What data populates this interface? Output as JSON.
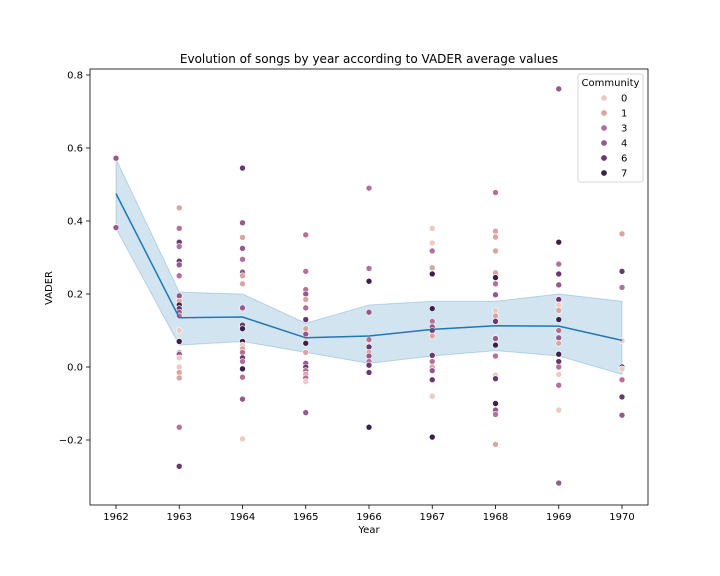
{
  "chart_data": {
    "type": "scatter",
    "title": "Evolution of songs by year according to VADER average values",
    "xlabel": "Year",
    "ylabel": "VADER",
    "categories": [
      "1962",
      "1963",
      "1964",
      "1965",
      "1966",
      "1967",
      "1968",
      "1969",
      "1970"
    ],
    "ylim": [
      -0.38,
      0.82
    ],
    "y_ticks": [
      -0.2,
      0.0,
      0.2,
      0.4,
      0.6,
      0.8
    ],
    "y_tick_labels": [
      "−0.2",
      "0.0",
      "0.2",
      "0.4",
      "0.6",
      "0.8"
    ],
    "grid": false,
    "legend": {
      "title": "Community",
      "position": "top-right",
      "entries": [
        {
          "label": "0",
          "color": "#ebcbc3"
        },
        {
          "label": "1",
          "color": "#d8a5a2"
        },
        {
          "label": "3",
          "color": "#b3719a"
        },
        {
          "label": "4",
          "color": "#955a8c"
        },
        {
          "label": "6",
          "color": "#673a6e"
        },
        {
          "label": "7",
          "color": "#3b2149"
        }
      ]
    },
    "mean_line": {
      "color": "#1f77b4",
      "band_color": "#1f77b4",
      "values": [
        0.475,
        0.135,
        0.137,
        0.08,
        0.085,
        0.103,
        0.113,
        0.112,
        0.073
      ],
      "ci_lower": [
        0.38,
        0.06,
        0.07,
        0.04,
        0.01,
        0.03,
        0.045,
        0.03,
        -0.02
      ],
      "ci_upper": [
        0.57,
        0.205,
        0.2,
        0.12,
        0.17,
        0.18,
        0.18,
        0.2,
        0.18
      ]
    },
    "points": [
      {
        "x": "1962",
        "y": 0.572,
        "c": "4"
      },
      {
        "x": "1962",
        "y": 0.382,
        "c": "4"
      },
      {
        "x": "1963",
        "y": 0.436,
        "c": "1"
      },
      {
        "x": "1963",
        "y": 0.38,
        "c": "3"
      },
      {
        "x": "1963",
        "y": 0.342,
        "c": "6"
      },
      {
        "x": "1963",
        "y": 0.33,
        "c": "3"
      },
      {
        "x": "1963",
        "y": 0.29,
        "c": "6"
      },
      {
        "x": "1963",
        "y": 0.28,
        "c": "4"
      },
      {
        "x": "1963",
        "y": 0.25,
        "c": "3"
      },
      {
        "x": "1963",
        "y": 0.195,
        "c": "4"
      },
      {
        "x": "1963",
        "y": 0.18,
        "c": "1"
      },
      {
        "x": "1963",
        "y": 0.17,
        "c": "7"
      },
      {
        "x": "1963",
        "y": 0.16,
        "c": "6"
      },
      {
        "x": "1963",
        "y": 0.15,
        "c": "4"
      },
      {
        "x": "1963",
        "y": 0.14,
        "c": "3"
      },
      {
        "x": "1963",
        "y": 0.1,
        "c": "0"
      },
      {
        "x": "1963",
        "y": 0.07,
        "c": "7"
      },
      {
        "x": "1963",
        "y": 0.04,
        "c": "1"
      },
      {
        "x": "1963",
        "y": 0.035,
        "c": "4"
      },
      {
        "x": "1963",
        "y": 0.025,
        "c": "0"
      },
      {
        "x": "1963",
        "y": 0.0,
        "c": "0"
      },
      {
        "x": "1963",
        "y": -0.015,
        "c": "1"
      },
      {
        "x": "1963",
        "y": -0.03,
        "c": "1"
      },
      {
        "x": "1963",
        "y": -0.165,
        "c": "3"
      },
      {
        "x": "1963",
        "y": -0.272,
        "c": "6"
      },
      {
        "x": "1964",
        "y": 0.545,
        "c": "6"
      },
      {
        "x": "1964",
        "y": 0.395,
        "c": "4"
      },
      {
        "x": "1964",
        "y": 0.355,
        "c": "1"
      },
      {
        "x": "1964",
        "y": 0.325,
        "c": "4"
      },
      {
        "x": "1964",
        "y": 0.295,
        "c": "3"
      },
      {
        "x": "1964",
        "y": 0.26,
        "c": "4"
      },
      {
        "x": "1964",
        "y": 0.25,
        "c": "1"
      },
      {
        "x": "1964",
        "y": 0.228,
        "c": "1"
      },
      {
        "x": "1964",
        "y": 0.162,
        "c": "4"
      },
      {
        "x": "1964",
        "y": 0.115,
        "c": "6"
      },
      {
        "x": "1964",
        "y": 0.105,
        "c": "7"
      },
      {
        "x": "1964",
        "y": 0.07,
        "c": "7"
      },
      {
        "x": "1964",
        "y": 0.06,
        "c": "0"
      },
      {
        "x": "1964",
        "y": 0.05,
        "c": "1"
      },
      {
        "x": "1964",
        "y": 0.04,
        "c": "3"
      },
      {
        "x": "1964",
        "y": 0.025,
        "c": "6"
      },
      {
        "x": "1964",
        "y": 0.015,
        "c": "3"
      },
      {
        "x": "1964",
        "y": -0.005,
        "c": "7"
      },
      {
        "x": "1964",
        "y": -0.028,
        "c": "3"
      },
      {
        "x": "1964",
        "y": -0.088,
        "c": "4"
      },
      {
        "x": "1964",
        "y": -0.197,
        "c": "0"
      },
      {
        "x": "1965",
        "y": 0.362,
        "c": "3"
      },
      {
        "x": "1965",
        "y": 0.262,
        "c": "3"
      },
      {
        "x": "1965",
        "y": 0.212,
        "c": "3"
      },
      {
        "x": "1965",
        "y": 0.2,
        "c": "4"
      },
      {
        "x": "1965",
        "y": 0.185,
        "c": "1"
      },
      {
        "x": "1965",
        "y": 0.162,
        "c": "3"
      },
      {
        "x": "1965",
        "y": 0.13,
        "c": "6"
      },
      {
        "x": "1965",
        "y": 0.105,
        "c": "1"
      },
      {
        "x": "1965",
        "y": 0.09,
        "c": "4"
      },
      {
        "x": "1965",
        "y": 0.075,
        "c": "0"
      },
      {
        "x": "1965",
        "y": 0.065,
        "c": "7"
      },
      {
        "x": "1965",
        "y": 0.04,
        "c": "1"
      },
      {
        "x": "1965",
        "y": 0.01,
        "c": "4"
      },
      {
        "x": "1965",
        "y": 0.0,
        "c": "6"
      },
      {
        "x": "1965",
        "y": -0.01,
        "c": "3"
      },
      {
        "x": "1965",
        "y": -0.02,
        "c": "1"
      },
      {
        "x": "1965",
        "y": -0.03,
        "c": "3"
      },
      {
        "x": "1965",
        "y": -0.04,
        "c": "0"
      },
      {
        "x": "1965",
        "y": -0.125,
        "c": "4"
      },
      {
        "x": "1966",
        "y": 0.49,
        "c": "3"
      },
      {
        "x": "1966",
        "y": 0.27,
        "c": "3"
      },
      {
        "x": "1966",
        "y": 0.235,
        "c": "7"
      },
      {
        "x": "1966",
        "y": 0.15,
        "c": "4"
      },
      {
        "x": "1966",
        "y": 0.075,
        "c": "3"
      },
      {
        "x": "1966",
        "y": 0.055,
        "c": "6"
      },
      {
        "x": "1966",
        "y": 0.04,
        "c": "1"
      },
      {
        "x": "1966",
        "y": 0.03,
        "c": "4"
      },
      {
        "x": "1966",
        "y": 0.015,
        "c": "3"
      },
      {
        "x": "1966",
        "y": 0.005,
        "c": "6"
      },
      {
        "x": "1966",
        "y": -0.015,
        "c": "6"
      },
      {
        "x": "1966",
        "y": -0.165,
        "c": "7"
      },
      {
        "x": "1967",
        "y": 0.38,
        "c": "0"
      },
      {
        "x": "1967",
        "y": 0.34,
        "c": "0"
      },
      {
        "x": "1967",
        "y": 0.318,
        "c": "3"
      },
      {
        "x": "1967",
        "y": 0.272,
        "c": "1"
      },
      {
        "x": "1967",
        "y": 0.255,
        "c": "7"
      },
      {
        "x": "1967",
        "y": 0.16,
        "c": "7"
      },
      {
        "x": "1967",
        "y": 0.125,
        "c": "3"
      },
      {
        "x": "1967",
        "y": 0.11,
        "c": "4"
      },
      {
        "x": "1967",
        "y": 0.1,
        "c": "6"
      },
      {
        "x": "1967",
        "y": 0.085,
        "c": "1"
      },
      {
        "x": "1967",
        "y": 0.032,
        "c": "6"
      },
      {
        "x": "1967",
        "y": 0.015,
        "c": "3"
      },
      {
        "x": "1967",
        "y": 0.0,
        "c": "1"
      },
      {
        "x": "1967",
        "y": -0.01,
        "c": "4"
      },
      {
        "x": "1967",
        "y": -0.035,
        "c": "6"
      },
      {
        "x": "1967",
        "y": -0.08,
        "c": "0"
      },
      {
        "x": "1967",
        "y": -0.192,
        "c": "7"
      },
      {
        "x": "1968",
        "y": 0.478,
        "c": "3"
      },
      {
        "x": "1968",
        "y": 0.372,
        "c": "1"
      },
      {
        "x": "1968",
        "y": 0.356,
        "c": "1"
      },
      {
        "x": "1968",
        "y": 0.318,
        "c": "1"
      },
      {
        "x": "1968",
        "y": 0.258,
        "c": "1"
      },
      {
        "x": "1968",
        "y": 0.245,
        "c": "7"
      },
      {
        "x": "1968",
        "y": 0.228,
        "c": "3"
      },
      {
        "x": "1968",
        "y": 0.198,
        "c": "4"
      },
      {
        "x": "1968",
        "y": 0.155,
        "c": "0"
      },
      {
        "x": "1968",
        "y": 0.14,
        "c": "1"
      },
      {
        "x": "1968",
        "y": 0.125,
        "c": "6"
      },
      {
        "x": "1968",
        "y": 0.078,
        "c": "4"
      },
      {
        "x": "1968",
        "y": 0.06,
        "c": "7"
      },
      {
        "x": "1968",
        "y": 0.03,
        "c": "3"
      },
      {
        "x": "1968",
        "y": -0.022,
        "c": "0"
      },
      {
        "x": "1968",
        "y": -0.032,
        "c": "6"
      },
      {
        "x": "1968",
        "y": -0.1,
        "c": "7"
      },
      {
        "x": "1968",
        "y": -0.118,
        "c": "4"
      },
      {
        "x": "1968",
        "y": -0.13,
        "c": "3"
      },
      {
        "x": "1968",
        "y": -0.212,
        "c": "1"
      },
      {
        "x": "1969",
        "y": 0.762,
        "c": "4"
      },
      {
        "x": "1969",
        "y": 0.342,
        "c": "7"
      },
      {
        "x": "1969",
        "y": 0.282,
        "c": "3"
      },
      {
        "x": "1969",
        "y": 0.255,
        "c": "6"
      },
      {
        "x": "1969",
        "y": 0.225,
        "c": "4"
      },
      {
        "x": "1969",
        "y": 0.185,
        "c": "6"
      },
      {
        "x": "1969",
        "y": 0.17,
        "c": "0"
      },
      {
        "x": "1969",
        "y": 0.155,
        "c": "1"
      },
      {
        "x": "1969",
        "y": 0.13,
        "c": "7"
      },
      {
        "x": "1969",
        "y": 0.1,
        "c": "3"
      },
      {
        "x": "1969",
        "y": 0.08,
        "c": "4"
      },
      {
        "x": "1969",
        "y": 0.065,
        "c": "1"
      },
      {
        "x": "1969",
        "y": 0.035,
        "c": "7"
      },
      {
        "x": "1969",
        "y": 0.015,
        "c": "6"
      },
      {
        "x": "1969",
        "y": 0.0,
        "c": "3"
      },
      {
        "x": "1969",
        "y": -0.02,
        "c": "0"
      },
      {
        "x": "1969",
        "y": -0.05,
        "c": "3"
      },
      {
        "x": "1969",
        "y": -0.118,
        "c": "0"
      },
      {
        "x": "1969",
        "y": -0.318,
        "c": "4"
      },
      {
        "x": "1970",
        "y": 0.365,
        "c": "1"
      },
      {
        "x": "1970",
        "y": 0.262,
        "c": "6"
      },
      {
        "x": "1970",
        "y": 0.218,
        "c": "3"
      },
      {
        "x": "1970",
        "y": 0.072,
        "c": "0"
      },
      {
        "x": "1970",
        "y": 0.0,
        "c": "7"
      },
      {
        "x": "1970",
        "y": -0.005,
        "c": "0"
      },
      {
        "x": "1970",
        "y": -0.035,
        "c": "3"
      },
      {
        "x": "1970",
        "y": -0.082,
        "c": "6"
      },
      {
        "x": "1970",
        "y": -0.132,
        "c": "4"
      }
    ]
  }
}
